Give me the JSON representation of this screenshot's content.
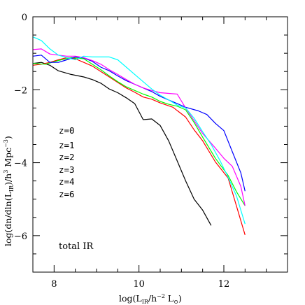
{
  "chart_data": {
    "type": "line",
    "xlabel": "log(L_IR/h^-2 L_⊙)",
    "ylabel": "log(dn/dln(L_IR)/h^3 Mpc^-3)",
    "xlim": [
      7.5,
      13.5
    ],
    "ylim": [
      -7,
      0
    ],
    "xticks": [
      8,
      10,
      12
    ],
    "yticks": [
      0,
      -2,
      -4,
      -6
    ],
    "x_minor_step": 0.5,
    "y_minor_step": 0.5,
    "annotation": "total IR",
    "legend_placement": "left-middle",
    "series": [
      {
        "name": "z=0",
        "color": "#000000",
        "points": [
          [
            7.5,
            -1.28
          ],
          [
            7.7,
            -1.25
          ],
          [
            7.9,
            -1.33
          ],
          [
            8.1,
            -1.48
          ],
          [
            8.4,
            -1.58
          ],
          [
            8.7,
            -1.65
          ],
          [
            8.9,
            -1.72
          ],
          [
            9.1,
            -1.82
          ],
          [
            9.3,
            -1.98
          ],
          [
            9.5,
            -2.08
          ],
          [
            9.7,
            -2.22
          ],
          [
            9.9,
            -2.38
          ],
          [
            10.1,
            -2.82
          ],
          [
            10.3,
            -2.8
          ],
          [
            10.5,
            -2.98
          ],
          [
            10.7,
            -3.4
          ],
          [
            10.9,
            -3.95
          ],
          [
            11.1,
            -4.5
          ],
          [
            11.3,
            -5.0
          ],
          [
            11.5,
            -5.3
          ],
          [
            11.7,
            -5.72
          ]
        ]
      },
      {
        "name": "z=1",
        "color": "#ff0000",
        "points": [
          [
            7.5,
            -1.33
          ],
          [
            7.7,
            -1.3
          ],
          [
            7.9,
            -1.25
          ],
          [
            8.1,
            -1.18
          ],
          [
            8.3,
            -1.12
          ],
          [
            8.5,
            -1.15
          ],
          [
            8.7,
            -1.25
          ],
          [
            8.9,
            -1.35
          ],
          [
            9.1,
            -1.5
          ],
          [
            9.3,
            -1.65
          ],
          [
            9.5,
            -1.8
          ],
          [
            9.7,
            -1.95
          ],
          [
            9.9,
            -2.07
          ],
          [
            10.1,
            -2.2
          ],
          [
            10.3,
            -2.26
          ],
          [
            10.5,
            -2.36
          ],
          [
            10.8,
            -2.48
          ],
          [
            11.1,
            -2.75
          ],
          [
            11.3,
            -3.1
          ],
          [
            11.5,
            -3.4
          ],
          [
            11.8,
            -3.98
          ],
          [
            12.1,
            -4.42
          ],
          [
            12.3,
            -5.2
          ],
          [
            12.5,
            -5.98
          ]
        ]
      },
      {
        "name": "z=2",
        "color": "#00ff00",
        "points": [
          [
            7.5,
            -1.28
          ],
          [
            7.8,
            -1.3
          ],
          [
            8.1,
            -1.2
          ],
          [
            8.4,
            -1.12
          ],
          [
            8.7,
            -1.15
          ],
          [
            8.9,
            -1.3
          ],
          [
            9.1,
            -1.45
          ],
          [
            9.3,
            -1.62
          ],
          [
            9.5,
            -1.78
          ],
          [
            9.7,
            -1.92
          ],
          [
            9.9,
            -2.02
          ],
          [
            10.1,
            -2.12
          ],
          [
            10.3,
            -2.2
          ],
          [
            10.5,
            -2.32
          ],
          [
            10.7,
            -2.4
          ],
          [
            10.9,
            -2.45
          ],
          [
            11.1,
            -2.55
          ],
          [
            11.3,
            -2.9
          ],
          [
            11.5,
            -3.3
          ],
          [
            11.8,
            -3.88
          ],
          [
            12.1,
            -4.35
          ],
          [
            12.3,
            -4.8
          ],
          [
            12.5,
            -5.18
          ]
        ]
      },
      {
        "name": "z=3",
        "color": "#0000ff",
        "points": [
          [
            7.5,
            -1.08
          ],
          [
            7.7,
            -1.05
          ],
          [
            7.9,
            -1.25
          ],
          [
            8.1,
            -1.25
          ],
          [
            8.3,
            -1.18
          ],
          [
            8.5,
            -1.1
          ],
          [
            8.7,
            -1.13
          ],
          [
            8.9,
            -1.22
          ],
          [
            9.1,
            -1.38
          ],
          [
            9.3,
            -1.48
          ],
          [
            9.5,
            -1.62
          ],
          [
            9.7,
            -1.75
          ],
          [
            9.9,
            -1.85
          ],
          [
            10.1,
            -1.95
          ],
          [
            10.3,
            -2.05
          ],
          [
            10.5,
            -2.18
          ],
          [
            10.7,
            -2.28
          ],
          [
            10.9,
            -2.38
          ],
          [
            11.1,
            -2.48
          ],
          [
            11.4,
            -2.58
          ],
          [
            11.6,
            -2.68
          ],
          [
            11.8,
            -2.92
          ],
          [
            12.0,
            -3.12
          ],
          [
            12.2,
            -3.7
          ],
          [
            12.4,
            -4.28
          ],
          [
            12.5,
            -4.78
          ]
        ]
      },
      {
        "name": "z=4",
        "color": "#ff00ff",
        "points": [
          [
            7.5,
            -0.9
          ],
          [
            7.7,
            -0.88
          ],
          [
            7.9,
            -1.02
          ],
          [
            8.1,
            -1.05
          ],
          [
            8.3,
            -1.08
          ],
          [
            8.5,
            -1.08
          ],
          [
            8.7,
            -1.12
          ],
          [
            8.9,
            -1.2
          ],
          [
            9.1,
            -1.3
          ],
          [
            9.3,
            -1.45
          ],
          [
            9.5,
            -1.58
          ],
          [
            9.7,
            -1.72
          ],
          [
            9.9,
            -1.85
          ],
          [
            10.1,
            -1.95
          ],
          [
            10.3,
            -2.02
          ],
          [
            10.5,
            -2.08
          ],
          [
            10.7,
            -2.1
          ],
          [
            10.9,
            -2.12
          ],
          [
            11.1,
            -2.5
          ],
          [
            11.3,
            -2.85
          ],
          [
            11.5,
            -3.2
          ],
          [
            11.8,
            -3.6
          ],
          [
            12.0,
            -3.88
          ],
          [
            12.2,
            -4.1
          ],
          [
            12.4,
            -4.65
          ],
          [
            12.5,
            -5.18
          ]
        ]
      },
      {
        "name": "z=6",
        "color": "#00ffff",
        "points": [
          [
            7.5,
            -0.55
          ],
          [
            7.7,
            -0.65
          ],
          [
            7.9,
            -0.88
          ],
          [
            8.1,
            -1.05
          ],
          [
            8.3,
            -1.12
          ],
          [
            8.5,
            -1.18
          ],
          [
            8.7,
            -1.08
          ],
          [
            8.9,
            -1.1
          ],
          [
            9.1,
            -1.1
          ],
          [
            9.3,
            -1.1
          ],
          [
            9.5,
            -1.18
          ],
          [
            9.7,
            -1.38
          ],
          [
            9.9,
            -1.58
          ],
          [
            10.1,
            -1.78
          ],
          [
            10.3,
            -1.98
          ],
          [
            10.5,
            -2.15
          ],
          [
            10.7,
            -2.28
          ],
          [
            10.9,
            -2.42
          ],
          [
            11.1,
            -2.5
          ],
          [
            11.3,
            -2.78
          ],
          [
            11.5,
            -3.15
          ],
          [
            11.7,
            -3.5
          ],
          [
            11.9,
            -3.92
          ],
          [
            12.1,
            -4.4
          ],
          [
            12.3,
            -4.92
          ],
          [
            12.5,
            -5.68
          ]
        ]
      }
    ]
  }
}
